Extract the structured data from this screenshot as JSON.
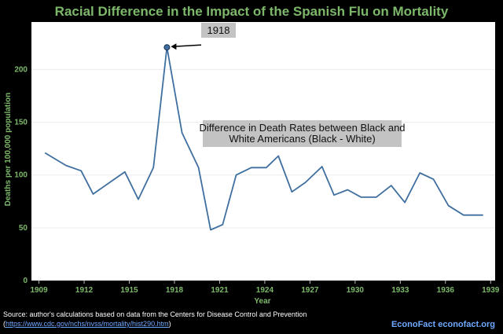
{
  "chart_data": {
    "type": "line",
    "title": "Racial Difference in the Impact of the Spanish Flu on Mortality",
    "xlabel": "Year",
    "ylabel": "Deaths per 100,000 population",
    "xlim": [
      1908.5,
      1939.3
    ],
    "ylim": [
      0,
      245
    ],
    "x_ticks": [
      1909,
      1912,
      1915,
      1918,
      1921,
      1924,
      1927,
      1930,
      1933,
      1936,
      1939
    ],
    "y_ticks": [
      0,
      50,
      100,
      150,
      200
    ],
    "grid": "horizontal",
    "series": [
      {
        "name": "",
        "color": "#3f6f9f",
        "x": [
          1909.4,
          1910.8,
          1911.8,
          1912.6,
          1913.7,
          1914.7,
          1915.6,
          1916.6,
          1917.5,
          1918.5,
          1919.6,
          1920.4,
          1921.2,
          1922.1,
          1923.1,
          1924.1,
          1924.9,
          1925.8,
          1926.7,
          1927.8,
          1928.6,
          1929.5,
          1930.4,
          1931.4,
          1932.4,
          1933.3,
          1934.3,
          1935.2,
          1936.2,
          1937.2,
          1938.5
        ],
        "values": [
          121,
          109,
          104,
          82,
          93,
          103,
          77,
          107,
          221,
          140,
          107,
          48,
          53,
          100,
          107,
          107,
          118,
          84,
          93,
          108,
          81,
          86,
          79,
          79,
          90,
          74,
          102,
          96,
          71,
          62,
          62
        ]
      }
    ],
    "annotations": [
      {
        "text": "1918",
        "x": 1917.5,
        "y": 221
      },
      {
        "text_line1": "Difference in Death Rates between Black and",
        "text_line2": "White Americans (Black - White)"
      }
    ]
  },
  "footer": {
    "source_prefix": "Source: author's calculations based on data from the Centers for Disease Control and Prevention (",
    "source_link": "https://www.cdc.gov/nchs/nvss/mortality/hist290.htm",
    "source_suffix": ")",
    "brand": "EconoFact  econofact.org"
  }
}
